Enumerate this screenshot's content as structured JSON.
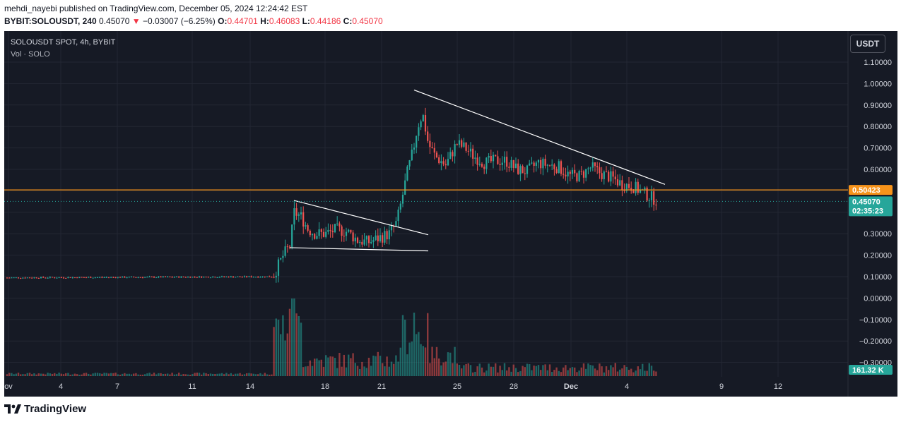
{
  "header": {
    "published_line": "mehdi_nayebi published on TradingView.com, December 05, 2024 12:24:42 EST",
    "symbol": "BYBIT:SOLOUSDT, 240",
    "last": "0.45070",
    "change": "−0.03007 (−6.25%)",
    "open_label": "O:",
    "open": "0.44701",
    "high_label": "H:",
    "high": "0.46083",
    "low_label": "L:",
    "low": "0.44186",
    "close_label": "C:",
    "close": "0.45070",
    "down_icon": "triangle-down-icon"
  },
  "legend": {
    "title": "SOLOUSDT SPOT, 4h, BYBIT",
    "volume": "Vol · SOLO"
  },
  "currency_button": "USDT",
  "price_tags": {
    "level": "0.50423",
    "last": "0.45070",
    "countdown": "02:35:23",
    "volume": "161.32 K"
  },
  "footer": {
    "brand": "TradingView",
    "logo_icon": "tradingview-logo-icon"
  },
  "colors": {
    "background": "#161a25",
    "up": "#26a69a",
    "down": "#ef5350",
    "level_line": "#f7931a",
    "trendline": "#ffffff"
  },
  "chart_data": {
    "type": "candlestick",
    "symbol": "SOLOUSDT",
    "exchange": "BYBIT",
    "timeframe": "4h",
    "y_axis_ticks": [
      "1.10000",
      "1.00000",
      "0.90000",
      "0.80000",
      "0.70000",
      "0.60000",
      "0.50000",
      "0.40000",
      "0.30000",
      "0.20000",
      "0.10000",
      "0.00000",
      "−0.10000",
      "−0.20000",
      "−0.30000"
    ],
    "ylim": [
      -0.33,
      1.17
    ],
    "x_axis_ticks": [
      "ov",
      "4",
      "7",
      "11",
      "14",
      "18",
      "21",
      "25",
      "28",
      "Dec",
      "4",
      "9",
      "12"
    ],
    "horizontal_level": 0.50423,
    "last_price": 0.4507,
    "series_close_approx": [
      {
        "period": "Nov 1 - Nov 15",
        "close": 0.09
      },
      {
        "period": "Nov 16",
        "close": 0.4
      },
      {
        "period": "Nov 17",
        "close": 0.33
      },
      {
        "period": "Nov 19",
        "close": 0.28
      },
      {
        "period": "Nov 21",
        "close": 0.3
      },
      {
        "period": "Nov 22",
        "close": 0.8
      },
      {
        "period": "Nov 23",
        "close": 0.65
      },
      {
        "period": "Nov 25",
        "close": 0.68
      },
      {
        "period": "Nov 28",
        "close": 0.62
      },
      {
        "period": "Dec 1",
        "close": 0.58
      },
      {
        "period": "Dec 3",
        "close": 0.55
      },
      {
        "period": "Dec 5",
        "close": 0.4507
      }
    ],
    "trendlines": [
      {
        "from": {
          "date": "Nov 16",
          "price": 0.45
        },
        "to": {
          "date": "Nov 20",
          "price": 0.29
        }
      },
      {
        "from": {
          "date": "Nov 16",
          "price": 0.235
        },
        "to": {
          "date": "Nov 20",
          "price": 0.22
        }
      },
      {
        "from": {
          "date": "Nov 22",
          "price": 0.97
        },
        "to": {
          "date": "Dec 5",
          "price": 0.53
        }
      }
    ],
    "volume_last": "161.32 K",
    "grid": true
  }
}
